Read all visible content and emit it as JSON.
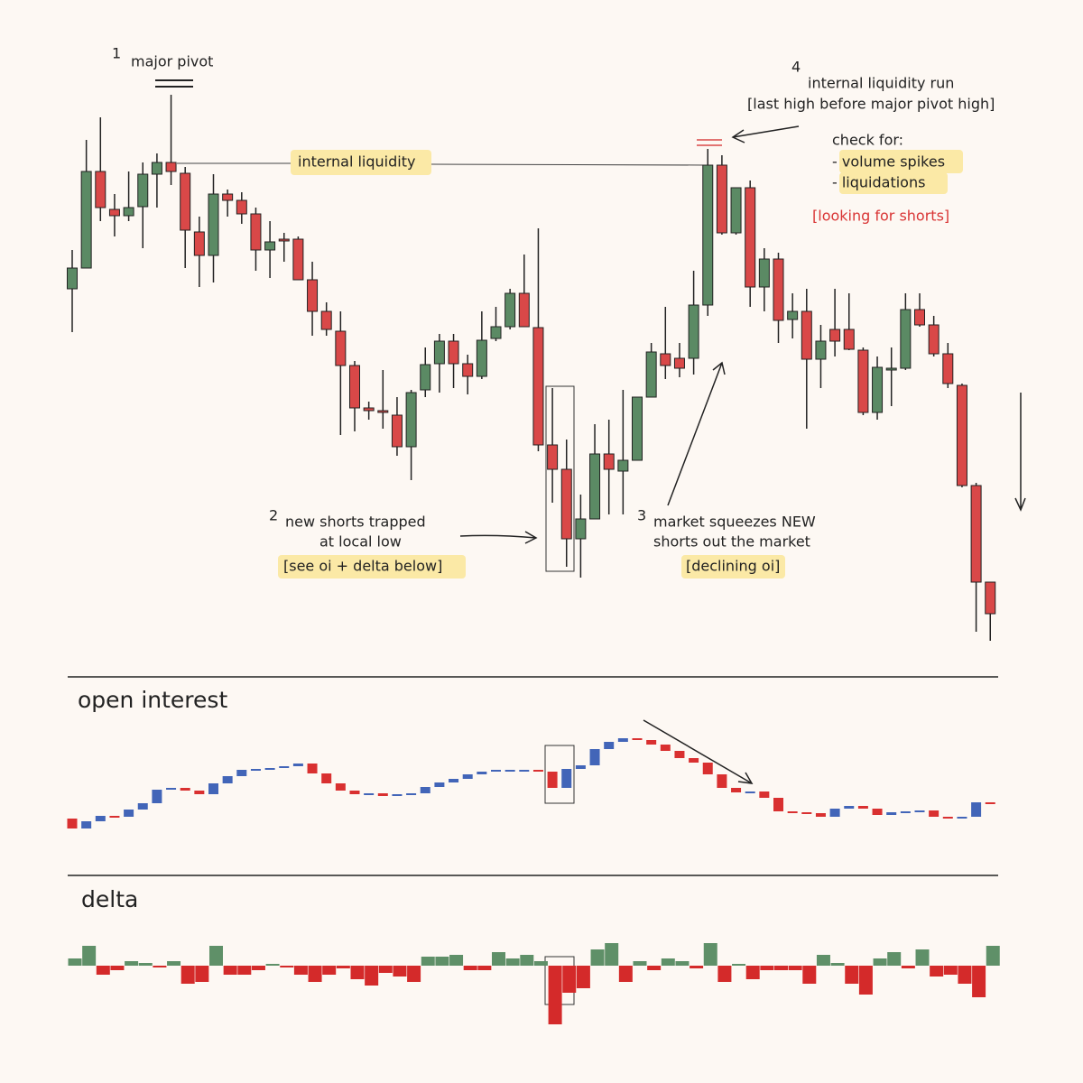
{
  "chart_data": [
    {
      "type": "candlestick",
      "up_color": "#5b8a64",
      "down_color": "#d94848",
      "ylim": [
        480,
        1120
      ],
      "open": [
        880,
        903,
        1010,
        968,
        961,
        971,
        1007,
        1020,
        1008,
        943,
        917,
        985,
        978,
        963,
        923,
        935,
        935,
        890,
        855,
        833,
        795,
        748,
        745,
        740,
        705,
        768,
        797,
        822,
        797,
        783,
        825,
        838,
        875,
        837,
        707,
        680,
        603,
        625,
        697,
        678,
        690,
        760,
        808,
        803,
        803,
        862,
        1017,
        942,
        992,
        882,
        913,
        846,
        855,
        802,
        835,
        835,
        812,
        743,
        791,
        792,
        857,
        840,
        808,
        773,
        662,
        555
      ],
      "high": [
        923,
        1045,
        1070,
        985,
        1010,
        1020,
        1030,
        1095,
        1015,
        960,
        1007,
        990,
        987,
        970,
        955,
        942,
        938,
        910,
        865,
        855,
        800,
        755,
        790,
        760,
        768,
        815,
        830,
        830,
        807,
        855,
        860,
        880,
        918,
        947,
        770,
        713,
        652,
        730,
        735,
        768,
        760,
        820,
        860,
        820,
        900,
        1035,
        1028,
        992,
        1000,
        925,
        920,
        875,
        880,
        840,
        880,
        875,
        815,
        805,
        815,
        875,
        875,
        850,
        820,
        775,
        665,
        555
      ],
      "low": [
        832,
        903,
        955,
        938,
        955,
        925,
        970,
        995,
        903,
        882,
        887,
        960,
        952,
        900,
        892,
        910,
        890,
        828,
        828,
        718,
        722,
        735,
        725,
        695,
        668,
        760,
        765,
        770,
        763,
        780,
        822,
        835,
        838,
        700,
        643,
        572,
        560,
        625,
        630,
        630,
        690,
        760,
        780,
        782,
        785,
        850,
        940,
        940,
        860,
        855,
        820,
        825,
        725,
        770,
        805,
        812,
        740,
        735,
        750,
        790,
        838,
        805,
        770,
        660,
        500,
        490
      ],
      "close": [
        903,
        1010,
        970,
        961,
        970,
        1007,
        1020,
        1010,
        945,
        917,
        985,
        978,
        963,
        923,
        932,
        934,
        890,
        855,
        835,
        795,
        748,
        745,
        744,
        705,
        765,
        796,
        822,
        797,
        783,
        823,
        838,
        875,
        838,
        707,
        680,
        603,
        625,
        697,
        680,
        690,
        760,
        810,
        795,
        792,
        862,
        1017,
        942,
        992,
        882,
        913,
        845,
        855,
        802,
        822,
        822,
        813,
        743,
        793,
        792,
        857,
        840,
        808,
        775,
        662,
        555,
        520
      ],
      "annotations": {
        "n1": "1",
        "major_pivot": "major pivot",
        "internal_liquidity": "internal liquidity",
        "n4": "4",
        "run": "internal liquidity run",
        "last_high": "[last high before major pivot high]",
        "check": "check for:",
        "volume": "- volume spikes",
        "liquidations": "- liquidations",
        "shorts": "[looking for shorts]",
        "n2": "2",
        "trapped1": "new shorts trapped",
        "trapped2": "at local low",
        "see": "[see oi + delta below]",
        "n3": "3",
        "squeeze1": "market squeezes NEW",
        "squeeze2": "shorts out the market",
        "declining": "[declining oi]"
      }
    },
    {
      "type": "level-candles",
      "title": "open interest",
      "up_color": "#4265b8",
      "down_color": "#d93030",
      "ylim": [
        60,
        210
      ],
      "levels": [
        93,
        82,
        90,
        96,
        95,
        103,
        110,
        125,
        127,
        124,
        120,
        132,
        140,
        147,
        148,
        149,
        151,
        154,
        143,
        132,
        124,
        120,
        121,
        118,
        120,
        121,
        128,
        133,
        137,
        142,
        145,
        147,
        147,
        147,
        145,
        127,
        148,
        152,
        170,
        178,
        182,
        180,
        175,
        168,
        160,
        155,
        142,
        127,
        122,
        123,
        116,
        101,
        100,
        99,
        95,
        104,
        107,
        104,
        97,
        100,
        101,
        102,
        95,
        94,
        95,
        111,
        110
      ]
    },
    {
      "type": "bar",
      "title": "delta",
      "up_color": "#5f9068",
      "down_color": "#d42a2a",
      "ylim": [
        -70,
        50
      ],
      "values": [
        8,
        22,
        -10,
        -5,
        5,
        3,
        -2,
        5,
        -20,
        -18,
        22,
        -10,
        -10,
        -5,
        2,
        -2,
        -10,
        -18,
        -10,
        -3,
        -15,
        -22,
        -8,
        -12,
        -18,
        10,
        10,
        12,
        -5,
        -5,
        15,
        8,
        12,
        5,
        -65,
        -30,
        -25,
        18,
        25,
        -18,
        5,
        -5,
        8,
        5,
        -3,
        25,
        -18,
        2,
        -15,
        -5,
        -5,
        -5,
        -20,
        12,
        3,
        -20,
        -32,
        8,
        15,
        -3,
        18,
        -12,
        -10,
        -20,
        -35,
        22
      ]
    }
  ]
}
